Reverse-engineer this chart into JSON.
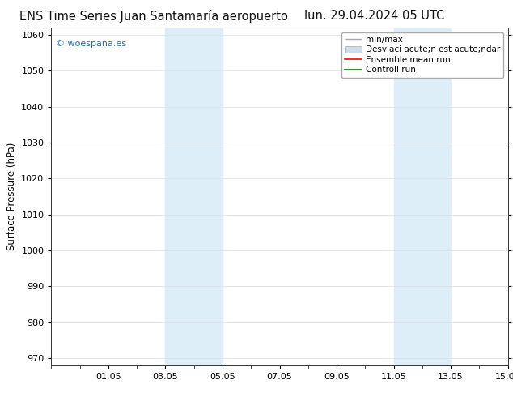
{
  "title": "ENS Time Series Juan Santamaría aeropuerto",
  "date_label": "lun. 29.04.2024 05 UTC",
  "ylabel": "Surface Pressure (hPa)",
  "ylim": [
    968,
    1062
  ],
  "yticks": [
    970,
    980,
    990,
    1000,
    1010,
    1020,
    1030,
    1040,
    1050,
    1060
  ],
  "xlim": [
    0,
    16
  ],
  "xtick_labels": [
    "01.05",
    "03.05",
    "05.05",
    "07.05",
    "09.05",
    "11.05",
    "13.05",
    "15.05"
  ],
  "xtick_positions": [
    2,
    4,
    6,
    8,
    10,
    12,
    14,
    16
  ],
  "bg_shade_regions": [
    {
      "xstart": 4,
      "xend": 5,
      "color": "#ddeef8"
    },
    {
      "xstart": 5,
      "xend": 6,
      "color": "#ddeef8"
    },
    {
      "xstart": 12,
      "xend": 13,
      "color": "#ddeef8"
    },
    {
      "xstart": 13,
      "xend": 14,
      "color": "#ddeef8"
    }
  ],
  "watermark_text": "© woespana.es",
  "watermark_color": "#1a6fba",
  "legend_labels": [
    "min/max",
    "Desviaci acute;n est acute;ndar",
    "Ensemble mean run",
    "Controll run"
  ],
  "legend_colors": [
    "#aaaaaa",
    "#ccddee",
    "red",
    "green"
  ],
  "grid_color": "#dddddd",
  "plot_bg_color": "#ffffff",
  "fig_bg_color": "#ffffff",
  "title_fontsize": 10.5,
  "axis_label_fontsize": 8.5,
  "tick_fontsize": 8,
  "legend_fontsize": 7.5
}
